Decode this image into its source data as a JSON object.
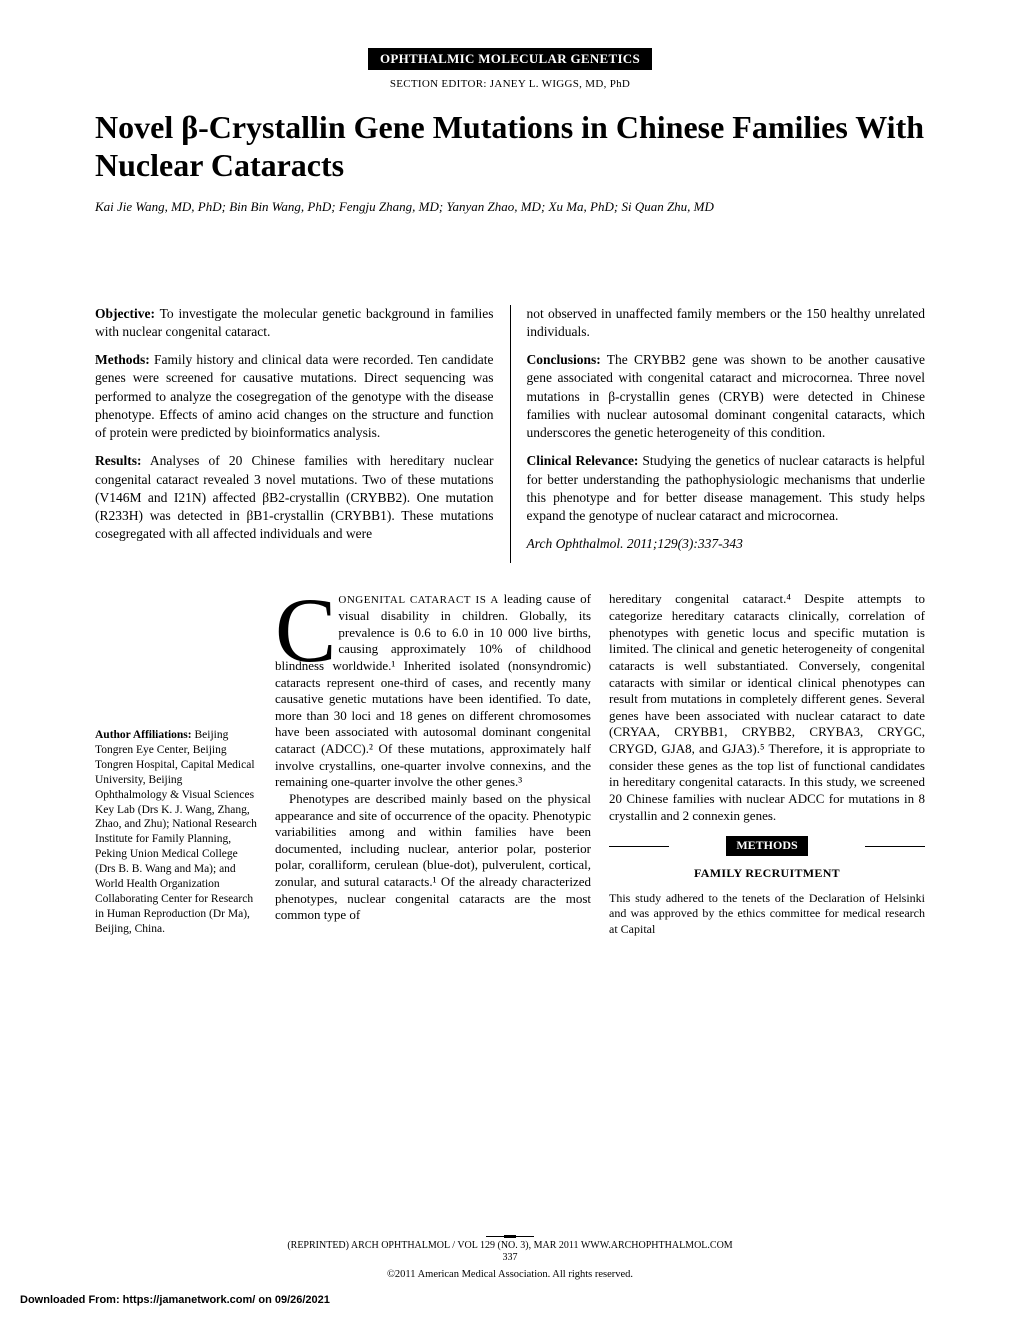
{
  "header": {
    "section_banner": "OPHTHALMIC MOLECULAR GENETICS",
    "section_editor": "SECTION EDITOR: JANEY L. WIGGS, MD, PhD"
  },
  "title": "Novel β-Crystallin Gene Mutations in Chinese Families With Nuclear Cataracts",
  "authors": "Kai Jie Wang, MD, PhD; Bin Bin Wang, PhD; Fengju Zhang, MD; Yanyan Zhao, MD; Xu Ma, PhD; Si Quan Zhu, MD",
  "abstract": {
    "left": {
      "objective_label": "Objective:",
      "objective": " To investigate the molecular genetic background in families with nuclear congenital cataract.",
      "methods_label": "Methods:",
      "methods": " Family history and clinical data were recorded. Ten candidate genes were screened for causative mutations. Direct sequencing was performed to analyze the cosegregation of the genotype with the disease phenotype. Effects of amino acid changes on the structure and function of protein were predicted by bioinformatics analysis.",
      "results_label": "Results:",
      "results": " Analyses of 20 Chinese families with hereditary nuclear congenital cataract revealed 3 novel mutations. Two of these mutations (V146M and I21N) affected βB2-crystallin (CRYBB2). One mutation (R233H) was detected in βB1-crystallin (CRYBB1). These mutations cosegregated with all affected individuals and were"
    },
    "right": {
      "results_cont": "not observed in unaffected family members or the 150 healthy unrelated individuals.",
      "conclusions_label": "Conclusions:",
      "conclusions": " The CRYBB2 gene was shown to be another causative gene associated with congenital cataract and microcornea. Three novel mutations in β-crystallin genes (CRYB) were detected in Chinese families with nuclear autosomal dominant congenital cataracts, which underscores the genetic heterogeneity of this condition.",
      "relevance_label": "Clinical Relevance:",
      "relevance": " Studying the genetics of nuclear cataracts is helpful for better understanding the pathophysiologic mechanisms that underlie this phenotype and for better disease management. This study helps expand the genotype of nuclear cataract and microcornea.",
      "citation": "Arch Ophthalmol. 2011;129(3):337-343"
    }
  },
  "affiliations": {
    "label": "Author Affiliations:",
    "text": " Beijing Tongren Eye Center, Beijing Tongren Hospital, Capital Medical University, Beijing Ophthalmology & Visual Sciences Key Lab (Drs K. J. Wang, Zhang, Zhao, and Zhu); National Research Institute for Family Planning, Peking Union Medical College (Drs B. B. Wang and Ma); and World Health Organization Collaborating Center for Research in Human Reproduction (Dr Ma), Beijing, China."
  },
  "body": {
    "col1_dropcap": "C",
    "col1_firstwords": "ONGENITAL CATARACT IS A",
    "col1_p1": " leading cause of visual disability in children. Globally, its prevalence is 0.6 to 6.0 in 10 000 live births, causing approximately 10% of childhood blindness worldwide.¹ Inherited isolated (nonsyndromic) cataracts represent one-third of cases, and recently many causative genetic mutations have been identified. To date, more than 30 loci and 18 genes on different chromosomes have been associated with autosomal dominant congenital cataract (ADCC).² Of these mutations, approximately half involve crystallins, one-quarter involve connexins, and the remaining one-quarter involve the other genes.³",
    "col1_p2": "Phenotypes are described mainly based on the physical appearance and site of occurrence of the opacity. Phenotypic variabilities among and within families have been documented, including nuclear, anterior polar, posterior polar, coralliform, cerulean (blue-dot), pulverulent, cortical, zonular, and sutural cataracts.¹ Of the already characterized phenotypes, nuclear congenital cataracts are the most common type of",
    "col2_p1": "hereditary congenital cataract.⁴ Despite attempts to categorize hereditary cataracts clinically, correlation of phenotypes with genetic locus and specific mutation is limited. The clinical and genetic heterogeneity of congenital cataracts is well substantiated. Conversely, congenital cataracts with similar or identical clinical phenotypes can result from mutations in completely different genes. Several genes have been associated with nuclear cataract to date (CRYAA, CRYBB1, CRYBB2, CRYBA3, CRYGC, CRYGD, GJA8, and GJA3).⁵ Therefore, it is appropriate to consider these genes as the top list of functional candidates in hereditary congenital cataracts. In this study, we screened 20 Chinese families with nuclear ADCC for mutations in 8 crystallin and 2 connexin genes.",
    "methods_label": "METHODS",
    "subsection": "FAMILY RECRUITMENT",
    "col2_p2": "This study adhered to the tenets of the Declaration of Helsinki and was approved by the ethics committee for medical research at Capital"
  },
  "footer": {
    "reprint": "(REPRINTED) ARCH OPHTHALMOL / VOL 129 (NO. 3), MAR 2011     WWW.ARCHOPHTHALMOL.COM",
    "pagenum": "337",
    "copyright": "©2011 American Medical Association. All rights reserved.",
    "download": "Downloaded From: https://jamanetwork.com/ on 09/26/2021"
  }
}
